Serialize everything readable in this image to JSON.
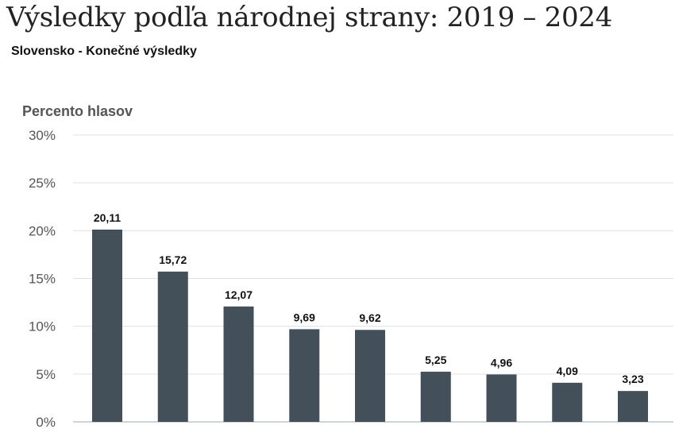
{
  "header": {
    "title": "Výsledky podľa národnej strany: 2019 – 2024",
    "subtitle": "Slovensko - Konečné výsledky"
  },
  "chart_data": {
    "type": "bar",
    "title": "Výsledky podľa národnej strany: 2019 – 2024",
    "subtitle": "Slovensko - Konečné výsledky",
    "ylabel": "Percento hlasov",
    "xlabel": "",
    "ylim": [
      0,
      30
    ],
    "yticks": [
      0,
      5,
      10,
      15,
      20,
      25,
      30
    ],
    "ytick_labels": [
      "0%",
      "5%",
      "10%",
      "15%",
      "20%",
      "25%",
      "30%"
    ],
    "grid": true,
    "bar_color": "#434f59",
    "values": [
      20.11,
      15.72,
      12.07,
      9.69,
      9.62,
      5.25,
      4.96,
      4.09,
      3.23
    ],
    "value_labels": [
      "20,11",
      "15,72",
      "12,07",
      "9,69",
      "9,62",
      "5,25",
      "4,96",
      "4,09",
      "3,23"
    ]
  }
}
